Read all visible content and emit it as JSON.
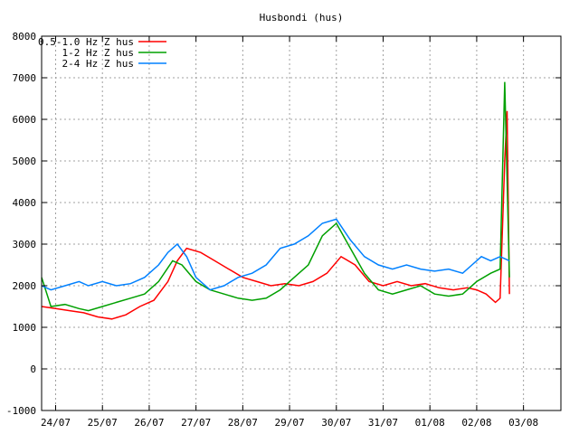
{
  "chart_data": {
    "type": "line",
    "title": "Husbondi (hus)",
    "xlabel": "",
    "ylabel": "",
    "ylim": [
      -1000,
      8000
    ],
    "xlim": [
      0,
      11.1
    ],
    "yticks": [
      -1000,
      0,
      1000,
      2000,
      3000,
      4000,
      5000,
      6000,
      7000,
      8000
    ],
    "xticks": [
      {
        "pos": 0.3,
        "label": "24/07"
      },
      {
        "pos": 1.3,
        "label": "25/07"
      },
      {
        "pos": 2.3,
        "label": "26/07"
      },
      {
        "pos": 3.3,
        "label": "27/07"
      },
      {
        "pos": 4.3,
        "label": "28/07"
      },
      {
        "pos": 5.3,
        "label": "29/07"
      },
      {
        "pos": 6.3,
        "label": "30/07"
      },
      {
        "pos": 7.3,
        "label": "31/07"
      },
      {
        "pos": 8.3,
        "label": "01/08"
      },
      {
        "pos": 9.3,
        "label": "02/08"
      },
      {
        "pos": 10.3,
        "label": "03/08"
      }
    ],
    "grid": true,
    "legend_position": "top-left",
    "series": [
      {
        "name": "0.5-1.0 Hz Z hus",
        "color": "#ff0000",
        "points": [
          [
            0.0,
            1500
          ],
          [
            0.3,
            1450
          ],
          [
            0.6,
            1400
          ],
          [
            0.9,
            1350
          ],
          [
            1.2,
            1250
          ],
          [
            1.5,
            1200
          ],
          [
            1.8,
            1300
          ],
          [
            2.1,
            1500
          ],
          [
            2.4,
            1650
          ],
          [
            2.7,
            2100
          ],
          [
            2.9,
            2600
          ],
          [
            3.1,
            2900
          ],
          [
            3.4,
            2800
          ],
          [
            3.7,
            2600
          ],
          [
            4.0,
            2400
          ],
          [
            4.3,
            2200
          ],
          [
            4.6,
            2100
          ],
          [
            4.9,
            2000
          ],
          [
            5.2,
            2050
          ],
          [
            5.5,
            2000
          ],
          [
            5.8,
            2100
          ],
          [
            6.1,
            2300
          ],
          [
            6.4,
            2700
          ],
          [
            6.7,
            2500
          ],
          [
            7.0,
            2100
          ],
          [
            7.3,
            2000
          ],
          [
            7.6,
            2100
          ],
          [
            7.9,
            2000
          ],
          [
            8.2,
            2050
          ],
          [
            8.5,
            1950
          ],
          [
            8.8,
            1900
          ],
          [
            9.1,
            1950
          ],
          [
            9.3,
            1900
          ],
          [
            9.5,
            1800
          ],
          [
            9.7,
            1600
          ],
          [
            9.8,
            1700
          ],
          [
            9.9,
            5000
          ],
          [
            9.95,
            6200
          ],
          [
            10.0,
            1800
          ]
        ]
      },
      {
        "name": "1-2 Hz Z hus",
        "color": "#00a000",
        "points": [
          [
            0.0,
            2200
          ],
          [
            0.2,
            1500
          ],
          [
            0.5,
            1550
          ],
          [
            0.8,
            1450
          ],
          [
            1.0,
            1400
          ],
          [
            1.3,
            1500
          ],
          [
            1.6,
            1600
          ],
          [
            1.9,
            1700
          ],
          [
            2.2,
            1800
          ],
          [
            2.5,
            2100
          ],
          [
            2.8,
            2600
          ],
          [
            3.0,
            2500
          ],
          [
            3.3,
            2100
          ],
          [
            3.6,
            1900
          ],
          [
            3.9,
            1800
          ],
          [
            4.2,
            1700
          ],
          [
            4.5,
            1650
          ],
          [
            4.8,
            1700
          ],
          [
            5.1,
            1900
          ],
          [
            5.4,
            2200
          ],
          [
            5.7,
            2500
          ],
          [
            6.0,
            3200
          ],
          [
            6.3,
            3500
          ],
          [
            6.6,
            2900
          ],
          [
            6.9,
            2300
          ],
          [
            7.2,
            1900
          ],
          [
            7.5,
            1800
          ],
          [
            7.8,
            1900
          ],
          [
            8.1,
            2000
          ],
          [
            8.4,
            1800
          ],
          [
            8.7,
            1750
          ],
          [
            9.0,
            1800
          ],
          [
            9.3,
            2100
          ],
          [
            9.6,
            2300
          ],
          [
            9.8,
            2400
          ],
          [
            9.9,
            6900
          ],
          [
            10.0,
            2200
          ]
        ]
      },
      {
        "name": "2-4 Hz Z hus",
        "color": "#0080ff",
        "points": [
          [
            0.0,
            2000
          ],
          [
            0.2,
            1900
          ],
          [
            0.5,
            2000
          ],
          [
            0.8,
            2100
          ],
          [
            1.0,
            2000
          ],
          [
            1.3,
            2100
          ],
          [
            1.6,
            2000
          ],
          [
            1.9,
            2050
          ],
          [
            2.2,
            2200
          ],
          [
            2.5,
            2500
          ],
          [
            2.7,
            2800
          ],
          [
            2.9,
            3000
          ],
          [
            3.1,
            2700
          ],
          [
            3.3,
            2200
          ],
          [
            3.6,
            1900
          ],
          [
            3.9,
            2000
          ],
          [
            4.2,
            2200
          ],
          [
            4.5,
            2300
          ],
          [
            4.8,
            2500
          ],
          [
            5.1,
            2900
          ],
          [
            5.4,
            3000
          ],
          [
            5.7,
            3200
          ],
          [
            6.0,
            3500
          ],
          [
            6.3,
            3600
          ],
          [
            6.6,
            3100
          ],
          [
            6.9,
            2700
          ],
          [
            7.2,
            2500
          ],
          [
            7.5,
            2400
          ],
          [
            7.8,
            2500
          ],
          [
            8.1,
            2400
          ],
          [
            8.4,
            2350
          ],
          [
            8.7,
            2400
          ],
          [
            9.0,
            2300
          ],
          [
            9.2,
            2500
          ],
          [
            9.4,
            2700
          ],
          [
            9.6,
            2600
          ],
          [
            9.8,
            2700
          ],
          [
            10.0,
            2600
          ]
        ]
      }
    ]
  }
}
